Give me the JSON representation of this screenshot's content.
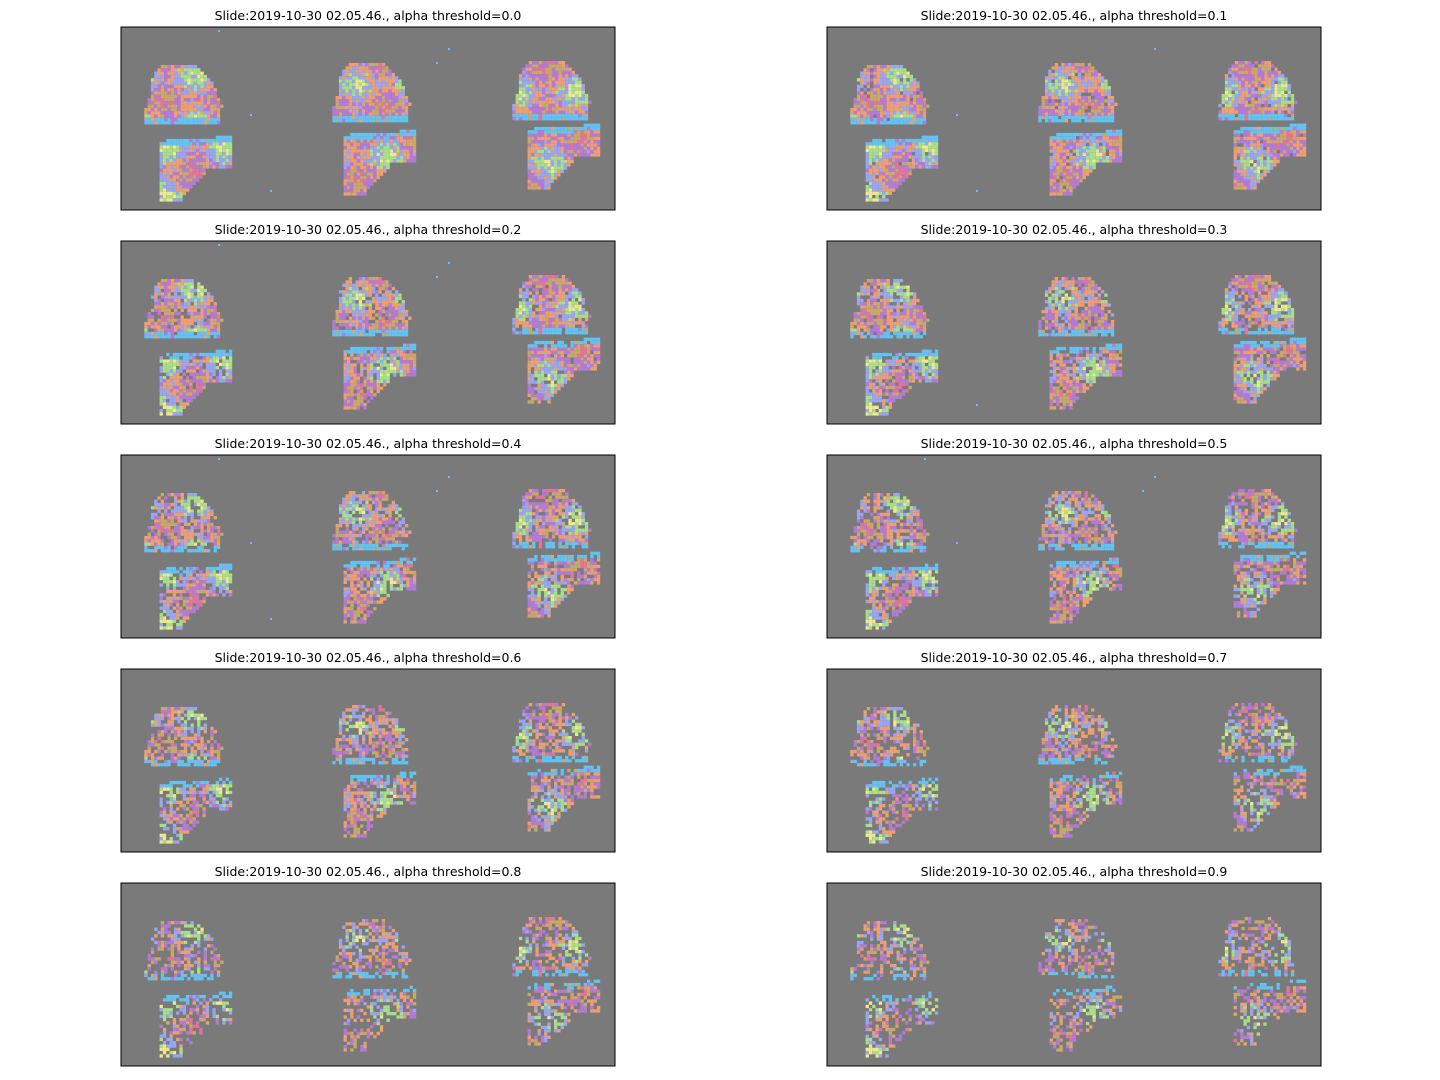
{
  "figure": {
    "background": "#ffffff",
    "panel_background": "#7a7a7a",
    "panel_border": "#000000"
  },
  "chart_data": [
    {
      "type": "heatmap",
      "title": "Slide:2019-10-30 02.05.46., alpha threshold=0.0",
      "alpha_threshold": 0.0,
      "grid": false,
      "axes_ticks": false
    },
    {
      "type": "heatmap",
      "title": "Slide:2019-10-30 02.05.46., alpha threshold=0.1",
      "alpha_threshold": 0.1,
      "grid": false,
      "axes_ticks": false
    },
    {
      "type": "heatmap",
      "title": "Slide:2019-10-30 02.05.46., alpha threshold=0.2",
      "alpha_threshold": 0.2,
      "grid": false,
      "axes_ticks": false
    },
    {
      "type": "heatmap",
      "title": "Slide:2019-10-30 02.05.46., alpha threshold=0.3",
      "alpha_threshold": 0.3,
      "grid": false,
      "axes_ticks": false
    },
    {
      "type": "heatmap",
      "title": "Slide:2019-10-30 02.05.46., alpha threshold=0.4",
      "alpha_threshold": 0.4,
      "grid": false,
      "axes_ticks": false
    },
    {
      "type": "heatmap",
      "title": "Slide:2019-10-30 02.05.46., alpha threshold=0.5",
      "alpha_threshold": 0.5,
      "grid": false,
      "axes_ticks": false
    },
    {
      "type": "heatmap",
      "title": "Slide:2019-10-30 02.05.46., alpha threshold=0.6",
      "alpha_threshold": 0.6,
      "grid": false,
      "axes_ticks": false
    },
    {
      "type": "heatmap",
      "title": "Slide:2019-10-30 02.05.46., alpha threshold=0.7",
      "alpha_threshold": 0.7,
      "grid": false,
      "axes_ticks": false
    },
    {
      "type": "heatmap",
      "title": "Slide:2019-10-30 02.05.46., alpha threshold=0.8",
      "alpha_threshold": 0.8,
      "grid": false,
      "axes_ticks": false
    },
    {
      "type": "heatmap",
      "title": "Slide:2019-10-30 02.05.46., alpha threshold=0.9",
      "alpha_threshold": 0.9,
      "grid": false,
      "axes_ticks": false
    }
  ],
  "cluster_colors": [
    "#e8739a",
    "#c9a86a",
    "#b57ad6",
    "#f0a070",
    "#9aa6f0",
    "#a8e08a",
    "#f0e890",
    "#e060c8"
  ],
  "boundary_color": "#62c4f2"
}
